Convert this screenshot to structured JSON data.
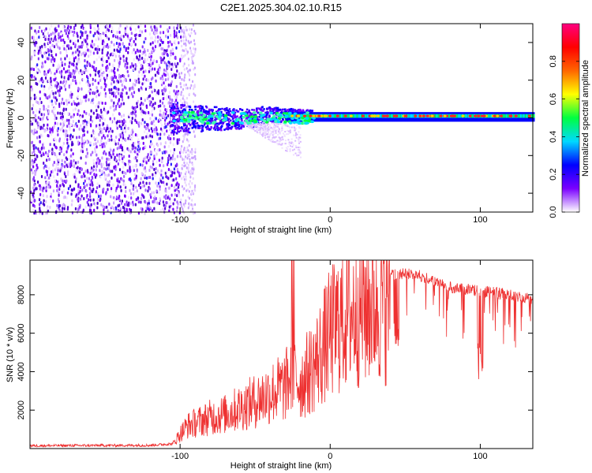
{
  "title": "C2E1.2025.304.02.10.R15",
  "chart_data": [
    {
      "type": "heatmap",
      "xlabel": "Height of straight line (km)",
      "ylabel": "Frequency (Hz)",
      "xlim": [
        -200,
        135
      ],
      "ylim": [
        -50,
        50
      ],
      "xticks": [
        -100,
        0,
        100
      ],
      "xtick_labels": [
        "-100",
        "0",
        "100"
      ],
      "yticks": [
        -40,
        -20,
        0,
        20,
        40
      ],
      "ytick_labels": [
        "-40",
        "-20",
        "0",
        "20",
        "40"
      ],
      "description_values": {
        "noise_region_x": [
          -200,
          -100
        ],
        "signal_centerline_hz": 0,
        "signal_band_start_km": -107
      },
      "colorbar": {
        "label": "Normalized spectral amplitude",
        "range": [
          0,
          1
        ],
        "ticks": [
          0.0,
          0.2,
          0.4,
          0.6,
          0.8
        ],
        "tick_labels": [
          "0.0",
          "0.2",
          "0.4",
          "0.6",
          "0.8"
        ],
        "colors": [
          "#ffffff",
          "#7a00ff",
          "#0000ff",
          "#00d9ff",
          "#00ff40",
          "#ffff00",
          "#ff6600",
          "#ff0000",
          "#ff0080"
        ]
      }
    },
    {
      "type": "line",
      "xlabel": "Height of straight line (km)",
      "ylabel": "SNR (10 * v/v)",
      "xlim": [
        -200,
        135
      ],
      "ylim": [
        0,
        9800
      ],
      "xticks": [
        -100,
        0,
        100
      ],
      "xtick_labels": [
        "-100",
        "0",
        "100"
      ],
      "yticks": [
        2000,
        4000,
        6000,
        8000
      ],
      "ytick_labels": [
        "2000",
        "4000",
        "6000",
        "8000"
      ],
      "series": [
        {
          "name": "SNR",
          "color": "#ee3030",
          "x": [
            -200,
            -160,
            -120,
            -105,
            -100,
            -95,
            -80,
            -70,
            -60,
            -50,
            -40,
            -30,
            -25,
            -20,
            -10,
            0,
            10,
            20,
            30,
            40,
            50,
            60,
            70,
            80,
            90,
            100,
            110,
            120,
            135
          ],
          "y": [
            150,
            160,
            170,
            250,
            900,
            1400,
            1900,
            2100,
            2500,
            2900,
            3400,
            3800,
            4600,
            4000,
            5200,
            7000,
            8200,
            8700,
            9000,
            9300,
            9400,
            9300,
            9000,
            8700,
            8600,
            8500,
            8400,
            8300,
            8100
          ]
        }
      ]
    }
  ]
}
